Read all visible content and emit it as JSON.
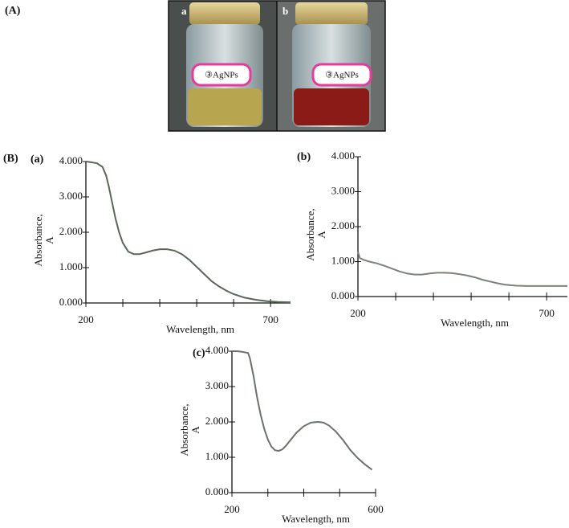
{
  "panel_A": {
    "label": "(A)",
    "photos": [
      "a",
      "b"
    ],
    "jar_text": "③AgNPs"
  },
  "panel_B": {
    "label": "(B)"
  },
  "chart_data": [
    {
      "type": "line",
      "label": "(a)",
      "x_label": "Wavelength, nm",
      "y_label": [
        "Absorbance,",
        "A"
      ],
      "color": "#5b665b",
      "x": [
        200,
        215,
        230,
        245,
        255,
        262,
        270,
        280,
        290,
        300,
        315,
        330,
        345,
        360,
        380,
        400,
        420,
        440,
        460,
        480,
        500,
        520,
        540,
        560,
        580,
        600,
        630,
        660,
        690,
        720,
        754
      ],
      "values": [
        4.0,
        3.98,
        3.95,
        3.85,
        3.6,
        3.3,
        2.9,
        2.4,
        2.0,
        1.7,
        1.45,
        1.38,
        1.38,
        1.42,
        1.48,
        1.52,
        1.52,
        1.48,
        1.38,
        1.22,
        1.02,
        0.82,
        0.62,
        0.47,
        0.35,
        0.25,
        0.15,
        0.09,
        0.05,
        0.03,
        0.02
      ],
      "xlim": [
        200,
        754
      ],
      "xticks": [
        200,
        700
      ],
      "xminor": [
        300,
        400,
        500,
        600
      ],
      "ylim": [
        0,
        4
      ],
      "yticks": [
        {
          "value": 0,
          "label": "0.000"
        },
        {
          "value": 1,
          "label": "1.000"
        },
        {
          "value": 2,
          "label": "2.000"
        },
        {
          "value": 3,
          "label": "3.000"
        },
        {
          "value": 4,
          "label": "4.000"
        }
      ]
    },
    {
      "type": "line",
      "label": "(b)",
      "x_label": "Wavelength, nm",
      "y_label": [
        "Absorbance,",
        "A"
      ],
      "color": "#7a827a",
      "x": [
        200,
        205,
        215,
        230,
        250,
        270,
        290,
        310,
        330,
        350,
        370,
        390,
        410,
        430,
        450,
        470,
        490,
        510,
        530,
        550,
        570,
        590,
        620,
        650,
        700,
        755
      ],
      "values": [
        1.28,
        1.1,
        1.05,
        1.0,
        0.95,
        0.88,
        0.8,
        0.72,
        0.66,
        0.63,
        0.63,
        0.66,
        0.68,
        0.68,
        0.67,
        0.64,
        0.6,
        0.55,
        0.48,
        0.43,
        0.38,
        0.34,
        0.31,
        0.3,
        0.3,
        0.3
      ],
      "xlim": [
        200,
        755
      ],
      "xticks": [
        200,
        700
      ],
      "xminor": [
        300,
        400,
        500,
        600
      ],
      "ylim": [
        0,
        4
      ],
      "yticks": [
        {
          "value": 0,
          "label": "0.000"
        },
        {
          "value": 1,
          "label": "1.000"
        },
        {
          "value": 2,
          "label": "2.000"
        },
        {
          "value": 3,
          "label": "3.000"
        },
        {
          "value": 4,
          "label": "4.000"
        }
      ]
    },
    {
      "type": "line",
      "label": "(c)",
      "x_label": "Wavelength, nm",
      "y_label": [
        "Absorbance,",
        "A"
      ],
      "color": "#6a726a",
      "x": [
        200,
        215,
        230,
        245,
        250,
        260,
        270,
        280,
        290,
        300,
        310,
        320,
        330,
        340,
        350,
        360,
        380,
        400,
        420,
        440,
        455,
        470,
        490,
        510,
        530,
        550,
        570,
        590
      ],
      "values": [
        4.0,
        4.0,
        3.98,
        3.95,
        3.8,
        3.3,
        2.7,
        2.2,
        1.8,
        1.5,
        1.3,
        1.2,
        1.18,
        1.22,
        1.32,
        1.45,
        1.7,
        1.88,
        1.98,
        2.0,
        1.98,
        1.9,
        1.72,
        1.48,
        1.2,
        0.98,
        0.8,
        0.65
      ],
      "xlim": [
        200,
        600
      ],
      "xticks": [
        200,
        600
      ],
      "xminor": [
        300,
        400,
        500
      ],
      "ylim": [
        0,
        4
      ],
      "yticks": [
        {
          "value": 0,
          "label": "0.000"
        },
        {
          "value": 1,
          "label": "1.000"
        },
        {
          "value": 2,
          "label": "2.000"
        },
        {
          "value": 3,
          "label": "3.000"
        },
        {
          "value": 4,
          "label": "4.000"
        }
      ]
    }
  ]
}
